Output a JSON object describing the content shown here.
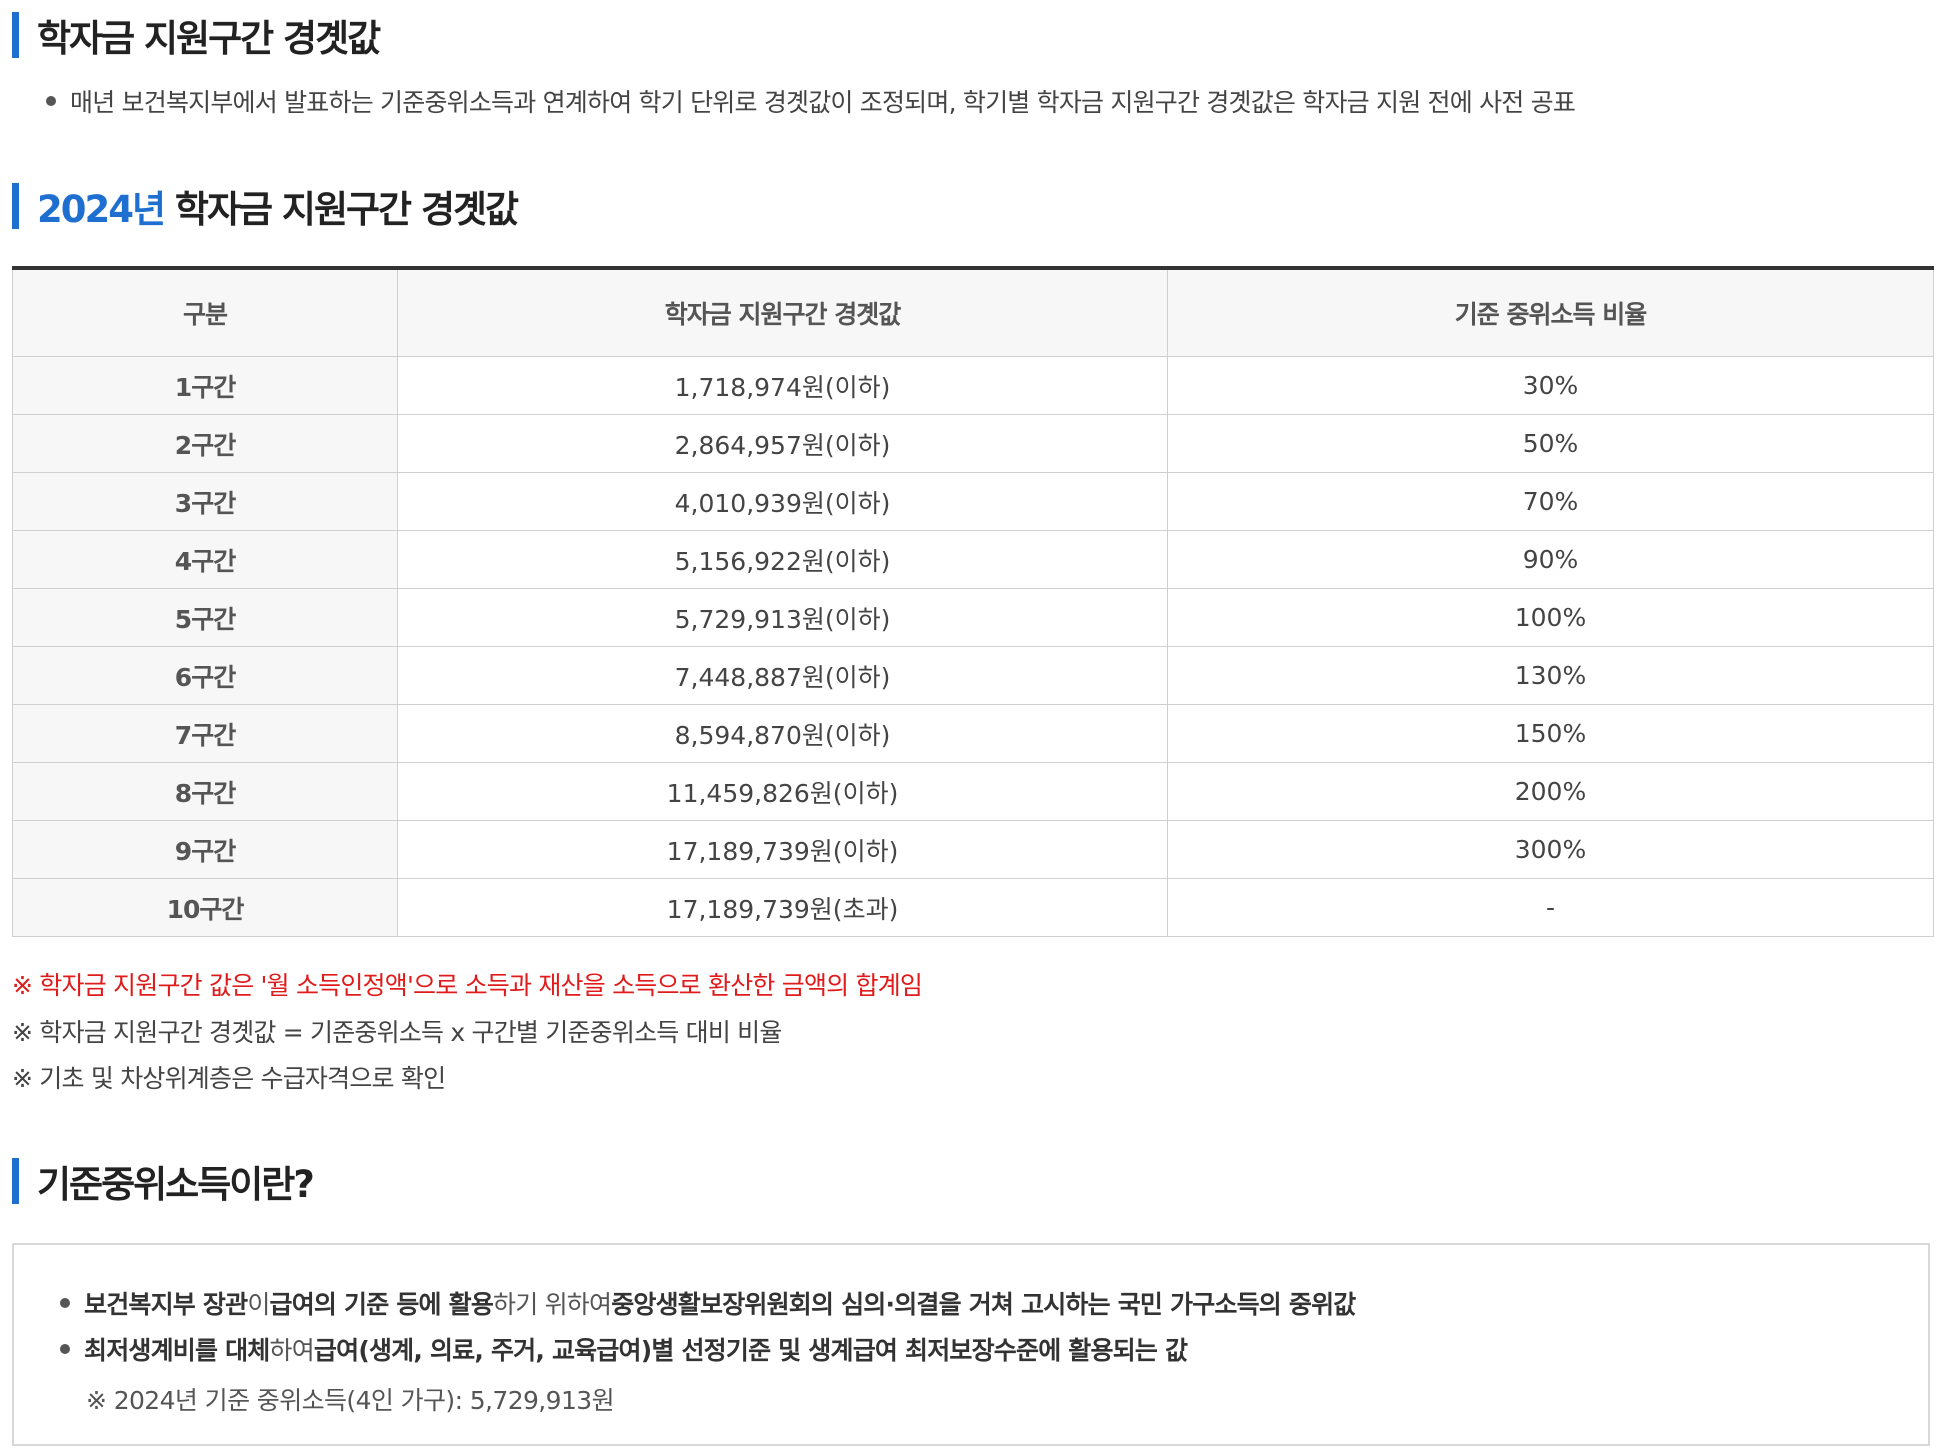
{
  "section1": {
    "title": "학자금 지원구간 경곗값",
    "description": "매년 보건복지부에서 발표하는 기준중위소득과 연계하여 학기 단위로 경곗값이 조정되며, 학기별 학자금 지원구간 경곗값은 학자금 지원 전에 사전 공표"
  },
  "section2": {
    "title_year": "2024년",
    "title_rest": " 학자금 지원구간 경곗값",
    "table": {
      "headers": [
        "구분",
        "학자금 지원구간 경곗값",
        "기준 중위소득 비율"
      ],
      "rows": [
        [
          "1구간",
          "1,718,974원(이하)",
          "30%"
        ],
        [
          "2구간",
          "2,864,957원(이하)",
          "50%"
        ],
        [
          "3구간",
          "4,010,939원(이하)",
          "70%"
        ],
        [
          "4구간",
          "5,156,922원(이하)",
          "90%"
        ],
        [
          "5구간",
          "5,729,913원(이하)",
          "100%"
        ],
        [
          "6구간",
          "7,448,887원(이하)",
          "130%"
        ],
        [
          "7구간",
          "8,594,870원(이하)",
          "150%"
        ],
        [
          "8구간",
          "11,459,826원(이하)",
          "200%"
        ],
        [
          "9구간",
          "17,189,739원(이하)",
          "300%"
        ],
        [
          "10구간",
          "17,189,739원(초과)",
          "-"
        ]
      ]
    },
    "notes": [
      "※ 학자금 지원구간 값은 '월 소득인정액'으로 소득과 재산을 소득으로 환산한 금액의 합계임",
      "※ 학자금 지원구간 경곗값 = 기준중위소득 x 구간별 기준중위소득 대비 비율",
      "※ 기초 및 차상위계층은 수급자격으로 확인"
    ],
    "highlight_color": "#1f6fd1",
    "note_red_color": "#e01b1b"
  },
  "section3": {
    "title": "기준중위소득이란?",
    "line1": {
      "p1": "보건복지부 장관",
      "p2": "이 ",
      "p3": "급여의 기준 등에 활용",
      "p4": "하기 위하여 ",
      "p5": "중앙생활보장위원회의 심의·의결을 거쳐 고시하는 국민 가구소득의 중위값"
    },
    "line2": {
      "p1": "최저생계비를 대체",
      "p2": "하여 ",
      "p3": "급여(생계, 의료, 주거, 교육급여)별 선정기준 및 생계급여 최저보장수준에 활용되는 값"
    },
    "sub_note": "※ 2024년 기준 중위소득(4인 가구): 5,729,913원"
  }
}
